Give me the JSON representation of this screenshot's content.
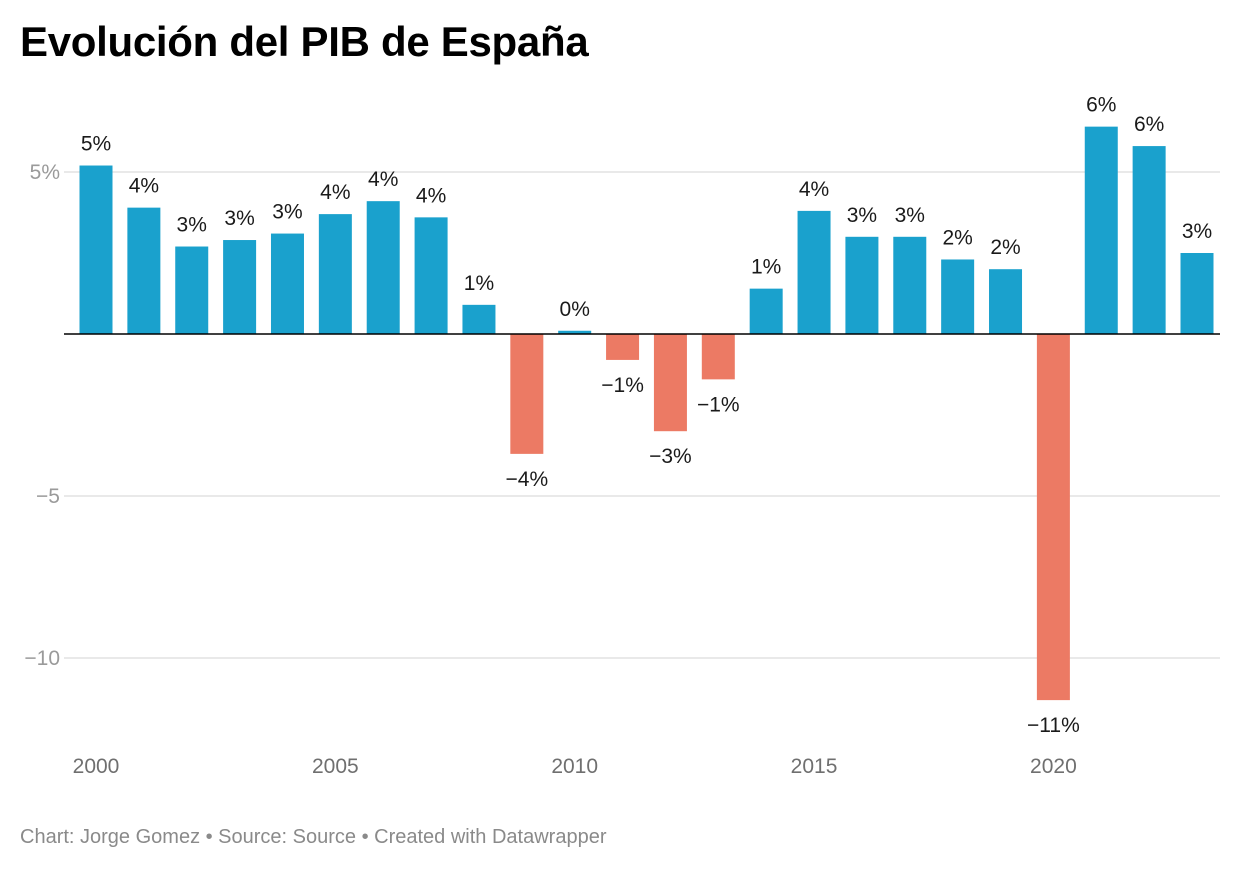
{
  "title": "Evolución del PIB de España",
  "footer": {
    "text": "Chart: Jorge Gomez • Source: Source • Created with Datawrapper"
  },
  "colors": {
    "positive": "#1aa1cd",
    "negative": "#ec7a64",
    "gridline": "#e2e2e2",
    "zero_line": "#000000"
  },
  "chart_data": {
    "type": "bar",
    "title": "Evolución del PIB de España",
    "xlabel": "",
    "ylabel": "",
    "categories": [
      2000,
      2001,
      2002,
      2003,
      2004,
      2005,
      2006,
      2007,
      2008,
      2009,
      2010,
      2011,
      2012,
      2013,
      2014,
      2015,
      2016,
      2017,
      2018,
      2019,
      2020,
      2021,
      2022,
      2023
    ],
    "values": [
      5.2,
      3.9,
      2.7,
      2.9,
      3.1,
      3.7,
      4.1,
      3.6,
      0.9,
      -3.7,
      0.1,
      -0.8,
      -3.0,
      -1.4,
      1.4,
      3.8,
      3.0,
      3.0,
      2.3,
      2.0,
      -11.3,
      6.4,
      5.8,
      2.5
    ],
    "labels": [
      "5%",
      "4%",
      "3%",
      "3%",
      "3%",
      "4%",
      "4%",
      "4%",
      "1%",
      "−4%",
      "0%",
      "−1%",
      "−3%",
      "−1%",
      "1%",
      "4%",
      "3%",
      "3%",
      "2%",
      "2%",
      "−11%",
      "6%",
      "6%",
      "3%"
    ],
    "ylim": [
      -12.2,
      7.2
    ],
    "y_ticks": [
      {
        "value": 5,
        "label": "5%"
      },
      {
        "value": -5,
        "label": "−5"
      },
      {
        "value": -10,
        "label": "−10"
      }
    ],
    "x_ticks": [
      {
        "value": 2000,
        "label": "2000"
      },
      {
        "value": 2005,
        "label": "2005"
      },
      {
        "value": 2010,
        "label": "2010"
      },
      {
        "value": 2015,
        "label": "2015"
      },
      {
        "value": 2020,
        "label": "2020"
      }
    ],
    "grid": true
  }
}
